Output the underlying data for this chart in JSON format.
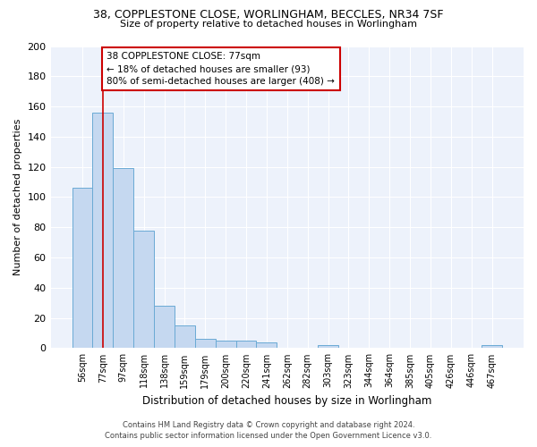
{
  "title1": "38, COPPLESTONE CLOSE, WORLINGHAM, BECCLES, NR34 7SF",
  "title2": "Size of property relative to detached houses in Worlingham",
  "xlabel": "Distribution of detached houses by size in Worlingham",
  "ylabel": "Number of detached properties",
  "categories": [
    "56sqm",
    "77sqm",
    "97sqm",
    "118sqm",
    "138sqm",
    "159sqm",
    "179sqm",
    "200sqm",
    "220sqm",
    "241sqm",
    "262sqm",
    "282sqm",
    "303sqm",
    "323sqm",
    "344sqm",
    "364sqm",
    "385sqm",
    "405sqm",
    "426sqm",
    "446sqm",
    "467sqm"
  ],
  "values": [
    106,
    156,
    119,
    78,
    28,
    15,
    6,
    5,
    5,
    4,
    0,
    0,
    2,
    0,
    0,
    0,
    0,
    0,
    0,
    0,
    2
  ],
  "bar_color": "#c5d8f0",
  "bar_edge_color": "#6aaad4",
  "vline_x_index": 1,
  "vline_color": "#cc0000",
  "annotation_text": "38 COPPLESTONE CLOSE: 77sqm\n← 18% of detached houses are smaller (93)\n80% of semi-detached houses are larger (408) →",
  "annotation_box_color": "#ffffff",
  "annotation_box_edge_color": "#cc0000",
  "ylim": [
    0,
    200
  ],
  "yticks": [
    0,
    20,
    40,
    60,
    80,
    100,
    120,
    140,
    160,
    180,
    200
  ],
  "background_color": "#edf2fb",
  "grid_color": "#ffffff",
  "footer1": "Contains HM Land Registry data © Crown copyright and database right 2024.",
  "footer2": "Contains public sector information licensed under the Open Government Licence v3.0."
}
